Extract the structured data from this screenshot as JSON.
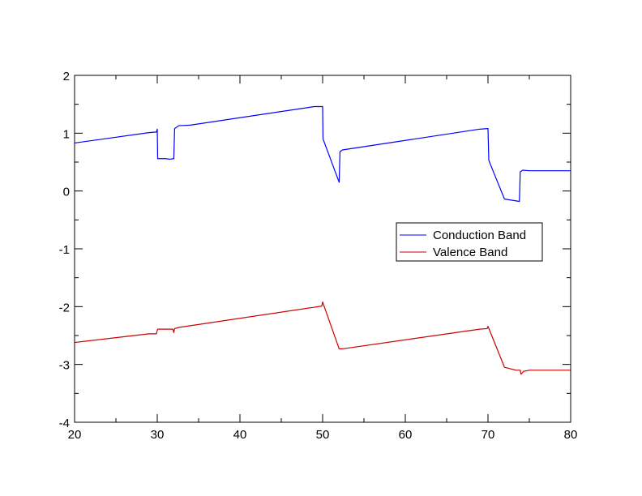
{
  "chart_data": {
    "type": "line",
    "title": "",
    "xlabel": "",
    "ylabel": "",
    "xlim": [
      20,
      80
    ],
    "ylim": [
      -4,
      2
    ],
    "xticks": [
      20,
      30,
      40,
      50,
      60,
      70,
      80
    ],
    "yticks": [
      -4,
      -3,
      -2,
      -1,
      0,
      1,
      2
    ],
    "grid": false,
    "legend_position": "right-center",
    "series": [
      {
        "name": "Conduction Band",
        "color": "#0000ff",
        "x": [
          20,
          29,
          29.9,
          30,
          30.05,
          31,
          31.5,
          32,
          32.1,
          32.6,
          34,
          49,
          50,
          50.05,
          52,
          52.1,
          52.4,
          69,
          70,
          70.1,
          71,
          72,
          73.8,
          73.9,
          74.2,
          75,
          80
        ],
        "y": [
          0.83,
          1.01,
          1.02,
          1.07,
          0.56,
          0.56,
          0.55,
          0.56,
          1.08,
          1.13,
          1.14,
          1.46,
          1.46,
          0.9,
          0.15,
          0.68,
          0.71,
          1.07,
          1.08,
          0.53,
          0.21,
          -0.14,
          -0.18,
          0.33,
          0.36,
          0.35,
          0.35
        ]
      },
      {
        "name": "Valence Band",
        "color": "#cc0000",
        "x": [
          20,
          29,
          29.9,
          30,
          30.05,
          31.9,
          32,
          32.1,
          32.6,
          34,
          49,
          49.9,
          50,
          52,
          52.4,
          69,
          69.9,
          70,
          72,
          73.4,
          73.9,
          74,
          74.3,
          75,
          80
        ],
        "y": [
          -2.62,
          -2.47,
          -2.47,
          -2.41,
          -2.39,
          -2.39,
          -2.45,
          -2.38,
          -2.36,
          -2.33,
          -2.01,
          -1.99,
          -1.92,
          -2.73,
          -2.73,
          -2.39,
          -2.38,
          -2.34,
          -3.05,
          -3.1,
          -3.1,
          -3.17,
          -3.12,
          -3.1,
          -3.1
        ]
      }
    ]
  }
}
